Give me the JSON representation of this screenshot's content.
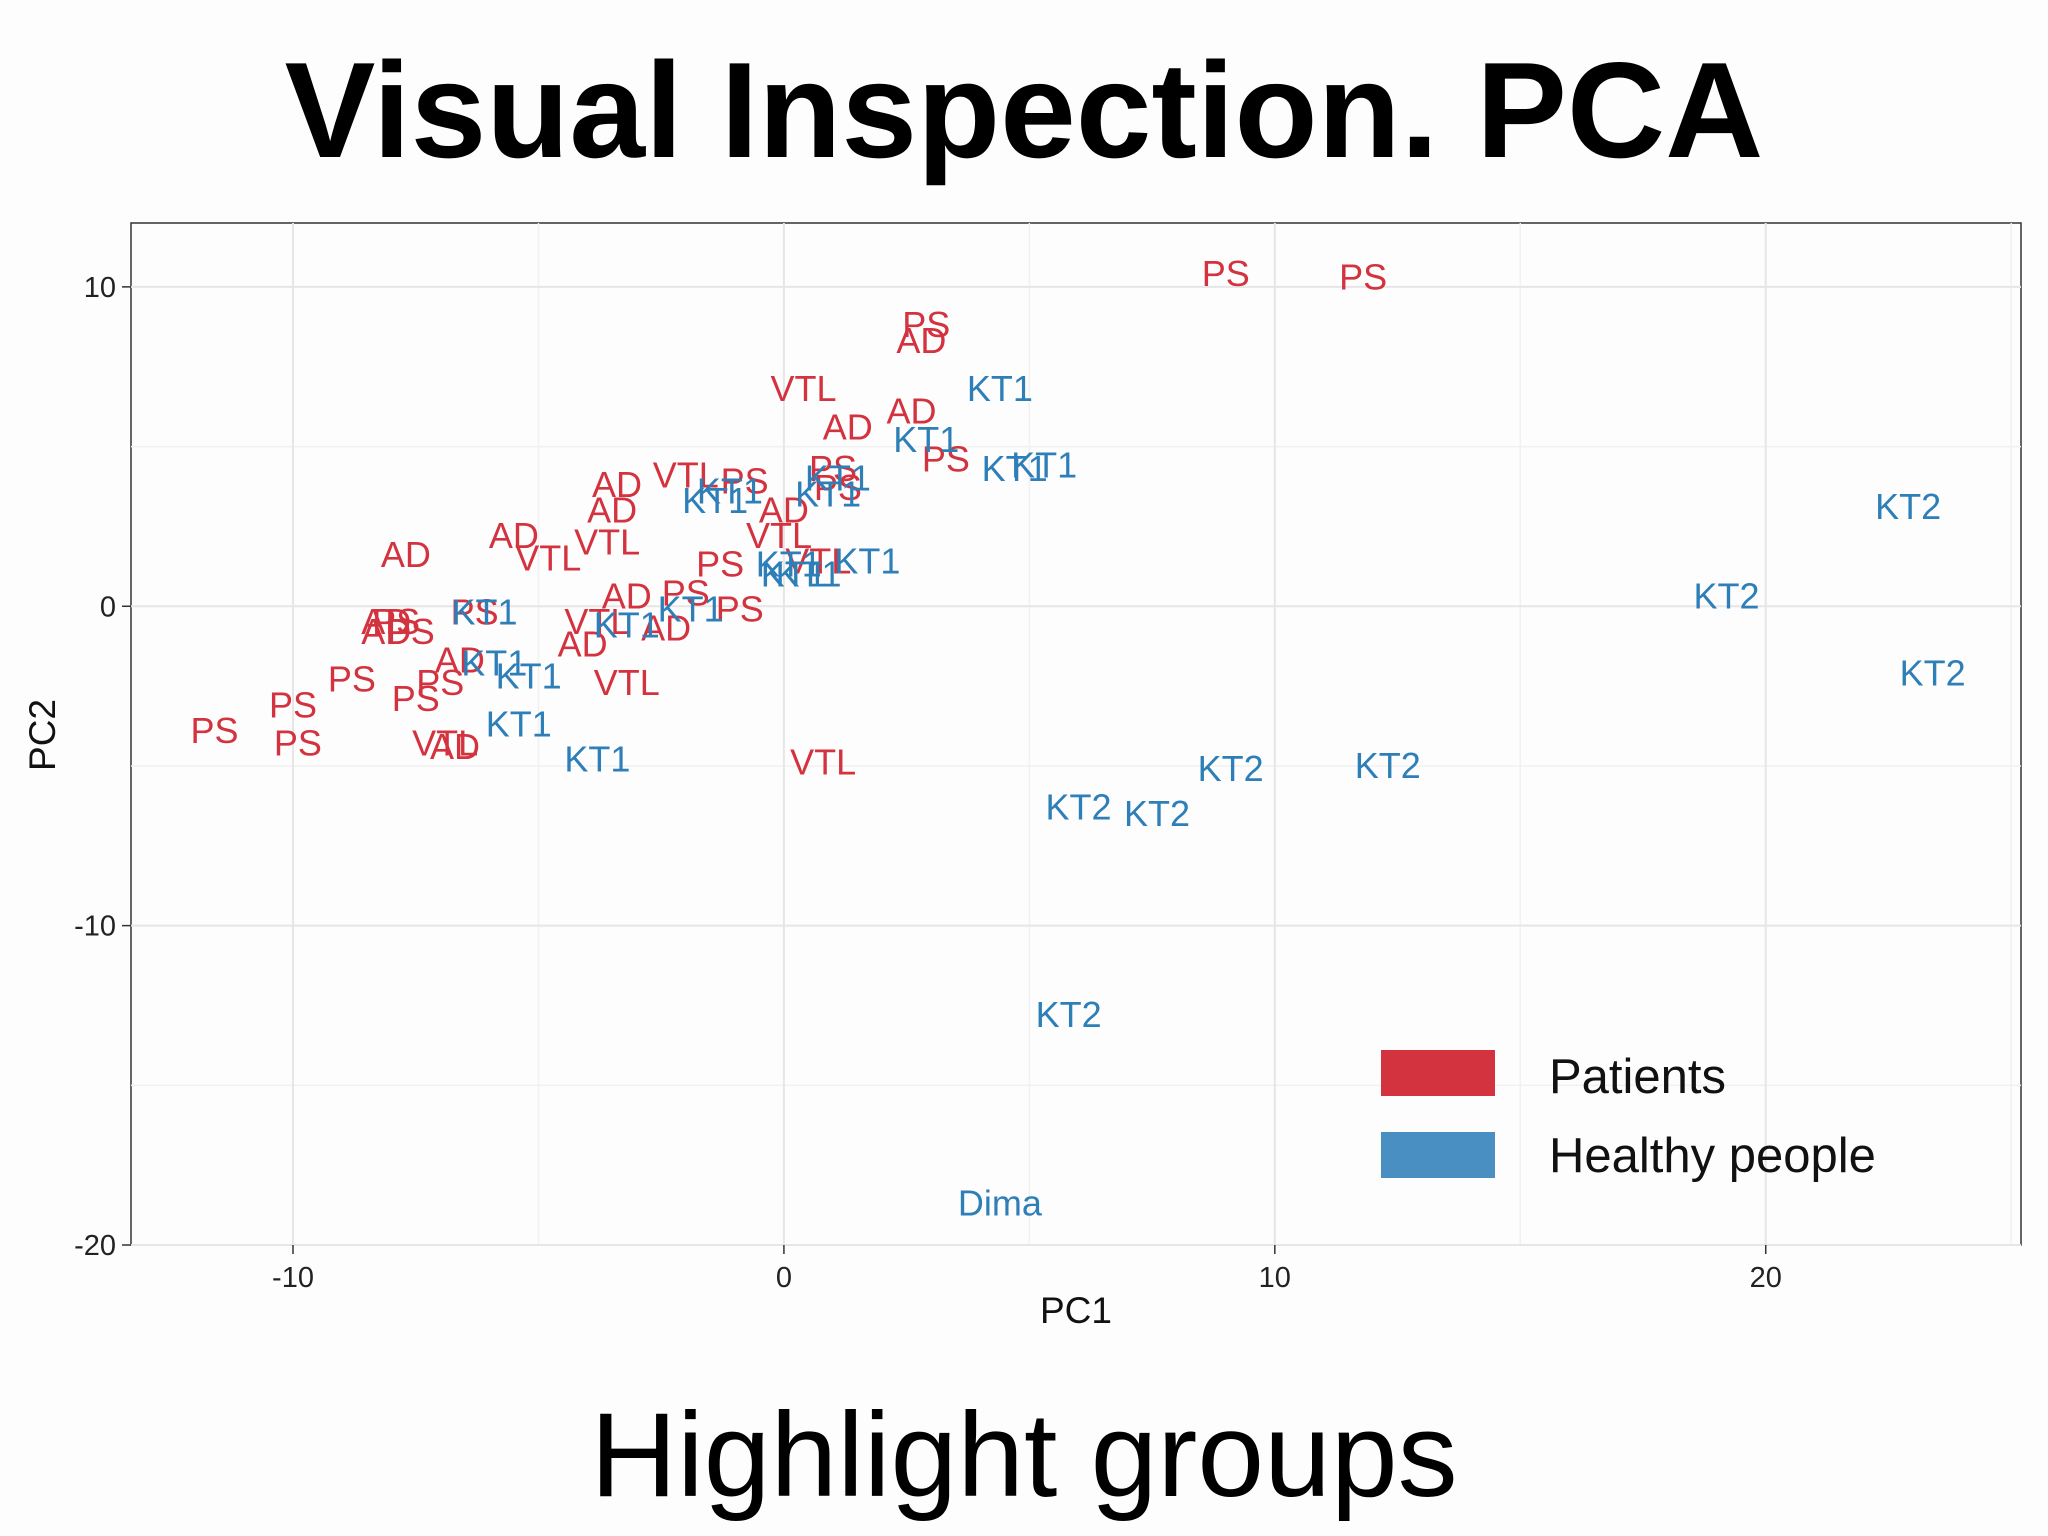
{
  "slide": {
    "title": "Visual Inspection. PCA",
    "subtitle": "Highlight groups"
  },
  "colors": {
    "patients": "#d3323f",
    "healthy": "#2e7fb8",
    "legend_patients": "#d3323f",
    "legend_healthy": "#4a8fc1"
  },
  "chart_data": {
    "type": "scatter",
    "title": "",
    "xlabel": "PC1",
    "ylabel": "PC2",
    "xlim": [
      -13.3,
      25.2
    ],
    "ylim": [
      -20,
      12
    ],
    "xticks": [
      -10,
      0,
      10,
      20
    ],
    "yticks": [
      -20,
      -10,
      0,
      10
    ],
    "xtick_labels": [
      "-10",
      "0",
      "10",
      "20"
    ],
    "ytick_labels": [
      "-20",
      "-10",
      "0",
      "10"
    ],
    "grid": true,
    "legend_position": "bottom-right",
    "series": [
      {
        "name": "Patients",
        "color_key": "patients",
        "points": [
          {
            "label": "PS",
            "x": 9.0,
            "y": 10.4
          },
          {
            "label": "PS",
            "x": 11.8,
            "y": 10.3
          },
          {
            "label": "PS",
            "x": 2.9,
            "y": 8.8
          },
          {
            "label": "AD",
            "x": 2.8,
            "y": 8.3
          },
          {
            "label": "VTL",
            "x": 0.4,
            "y": 6.8
          },
          {
            "label": "AD",
            "x": 2.6,
            "y": 6.1
          },
          {
            "label": "AD",
            "x": 1.3,
            "y": 5.6
          },
          {
            "label": "PS",
            "x": 3.3,
            "y": 4.6
          },
          {
            "label": "PS",
            "x": 1.0,
            "y": 4.3
          },
          {
            "label": "VTL",
            "x": -2.0,
            "y": 4.1
          },
          {
            "label": "PS",
            "x": -0.8,
            "y": 3.9
          },
          {
            "label": "PS",
            "x": 1.1,
            "y": 3.7
          },
          {
            "label": "AD",
            "x": -3.4,
            "y": 3.8
          },
          {
            "label": "AD",
            "x": -3.5,
            "y": 3.0
          },
          {
            "label": "AD",
            "x": 0.0,
            "y": 3.0
          },
          {
            "label": "VTL",
            "x": -0.1,
            "y": 2.2
          },
          {
            "label": "AD",
            "x": -5.5,
            "y": 2.2
          },
          {
            "label": "VTL",
            "x": -3.6,
            "y": 2.0
          },
          {
            "label": "VTL",
            "x": -4.8,
            "y": 1.5
          },
          {
            "label": "AD",
            "x": -7.7,
            "y": 1.6
          },
          {
            "label": "PS",
            "x": -1.3,
            "y": 1.3
          },
          {
            "label": "VTL",
            "x": 0.7,
            "y": 1.4
          },
          {
            "label": "AD",
            "x": -3.2,
            "y": 0.3
          },
          {
            "label": "PS",
            "x": -2.0,
            "y": 0.4
          },
          {
            "label": "PS",
            "x": -0.9,
            "y": -0.1
          },
          {
            "label": "VTL",
            "x": -3.8,
            "y": -0.5
          },
          {
            "label": "AD",
            "x": -2.4,
            "y": -0.7
          },
          {
            "label": "AD",
            "x": -4.1,
            "y": -1.2
          },
          {
            "label": "AD",
            "x": -8.1,
            "y": -0.5
          },
          {
            "label": "PS",
            "x": -7.9,
            "y": -0.5
          },
          {
            "label": "AD",
            "x": -8.1,
            "y": -0.8
          },
          {
            "label": "PS",
            "x": -7.6,
            "y": -0.8
          },
          {
            "label": "PS",
            "x": -6.3,
            "y": -0.2
          },
          {
            "label": "AD",
            "x": -6.6,
            "y": -1.7
          },
          {
            "label": "PS",
            "x": -8.8,
            "y": -2.3
          },
          {
            "label": "PS",
            "x": -7.0,
            "y": -2.4
          },
          {
            "label": "PS",
            "x": -7.5,
            "y": -2.9
          },
          {
            "label": "VTL",
            "x": -3.2,
            "y": -2.4
          },
          {
            "label": "PS",
            "x": -10.0,
            "y": -3.1
          },
          {
            "label": "PS",
            "x": -11.6,
            "y": -3.9
          },
          {
            "label": "PS",
            "x": -9.9,
            "y": -4.3
          },
          {
            "label": "VTL",
            "x": -6.9,
            "y": -4.3
          },
          {
            "label": "AD",
            "x": -6.7,
            "y": -4.4
          },
          {
            "label": "VTL",
            "x": 0.8,
            "y": -4.9
          }
        ]
      },
      {
        "name": "Healthy people",
        "color_key": "healthy",
        "points": [
          {
            "label": "KT1",
            "x": 4.4,
            "y": 6.8
          },
          {
            "label": "KT1",
            "x": 2.9,
            "y": 5.2
          },
          {
            "label": "KT1",
            "x": 5.3,
            "y": 4.4
          },
          {
            "label": "KT1",
            "x": 4.7,
            "y": 4.3
          },
          {
            "label": "KT1",
            "x": 1.1,
            "y": 4.0
          },
          {
            "label": "KT1",
            "x": 0.9,
            "y": 3.5
          },
          {
            "label": "KT1",
            "x": -1.4,
            "y": 3.3
          },
          {
            "label": "KT1",
            "x": -1.1,
            "y": 3.6
          },
          {
            "label": "KT1",
            "x": 1.7,
            "y": 1.4
          },
          {
            "label": "KT1",
            "x": 0.1,
            "y": 1.3
          },
          {
            "label": "KT1",
            "x": 0.2,
            "y": 1.0
          },
          {
            "label": "KT1",
            "x": 0.5,
            "y": 1.0
          },
          {
            "label": "KT1",
            "x": -6.1,
            "y": -0.2
          },
          {
            "label": "KT1",
            "x": -3.2,
            "y": -0.6
          },
          {
            "label": "KT1",
            "x": -1.9,
            "y": -0.1
          },
          {
            "label": "KT1",
            "x": -5.9,
            "y": -1.8
          },
          {
            "label": "KT1",
            "x": -5.2,
            "y": -2.2
          },
          {
            "label": "KT1",
            "x": -5.4,
            "y": -3.7
          },
          {
            "label": "KT1",
            "x": -3.8,
            "y": -4.8
          },
          {
            "label": "KT2",
            "x": 22.9,
            "y": 3.1
          },
          {
            "label": "KT2",
            "x": 19.2,
            "y": 0.3
          },
          {
            "label": "KT2",
            "x": 23.4,
            "y": -2.1
          },
          {
            "label": "KT2",
            "x": 9.1,
            "y": -5.1
          },
          {
            "label": "KT2",
            "x": 12.3,
            "y": -5.0
          },
          {
            "label": "KT2",
            "x": 6.0,
            "y": -6.3
          },
          {
            "label": "KT2",
            "x": 7.6,
            "y": -6.5
          },
          {
            "label": "KT2",
            "x": 5.8,
            "y": -12.8
          },
          {
            "label": "Dima",
            "x": 4.4,
            "y": -18.7,
            "small": true
          }
        ]
      }
    ],
    "legend": [
      {
        "label": "Patients",
        "color_key": "legend_patients"
      },
      {
        "label": "Healthy people",
        "color_key": "legend_healthy"
      }
    ]
  }
}
